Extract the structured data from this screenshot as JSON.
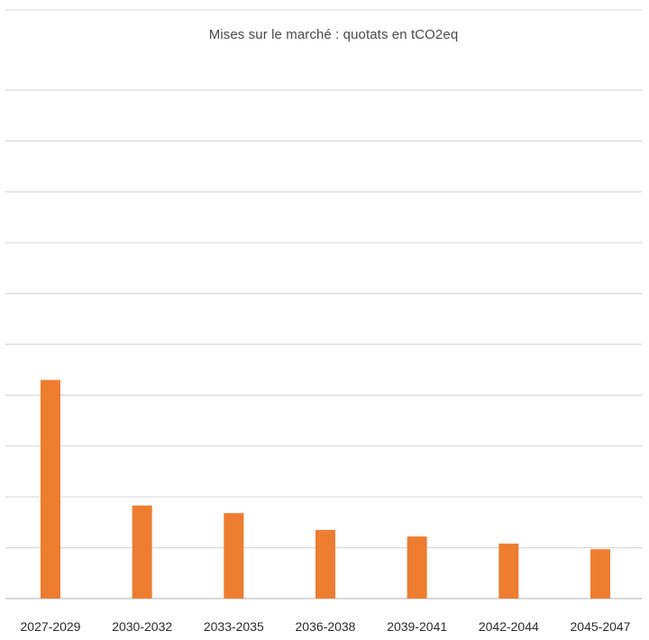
{
  "chart_data": {
    "type": "bar",
    "title": "Mises sur le marché : quotats en tCO2eq",
    "categories": [
      "2027-2029",
      "2030-2032",
      "2033-2035",
      "2036-2038",
      "2039-2041",
      "2042-2044",
      "2045-2047"
    ],
    "values": [
      4.3,
      1.83,
      1.68,
      1.35,
      1.22,
      1.08,
      0.97
    ],
    "ylim": [
      0,
      10
    ],
    "grid": true,
    "colors": {
      "bar": "#ED7D31",
      "grid": "#d9d9d9",
      "baseline": "#bfbfbf"
    }
  }
}
